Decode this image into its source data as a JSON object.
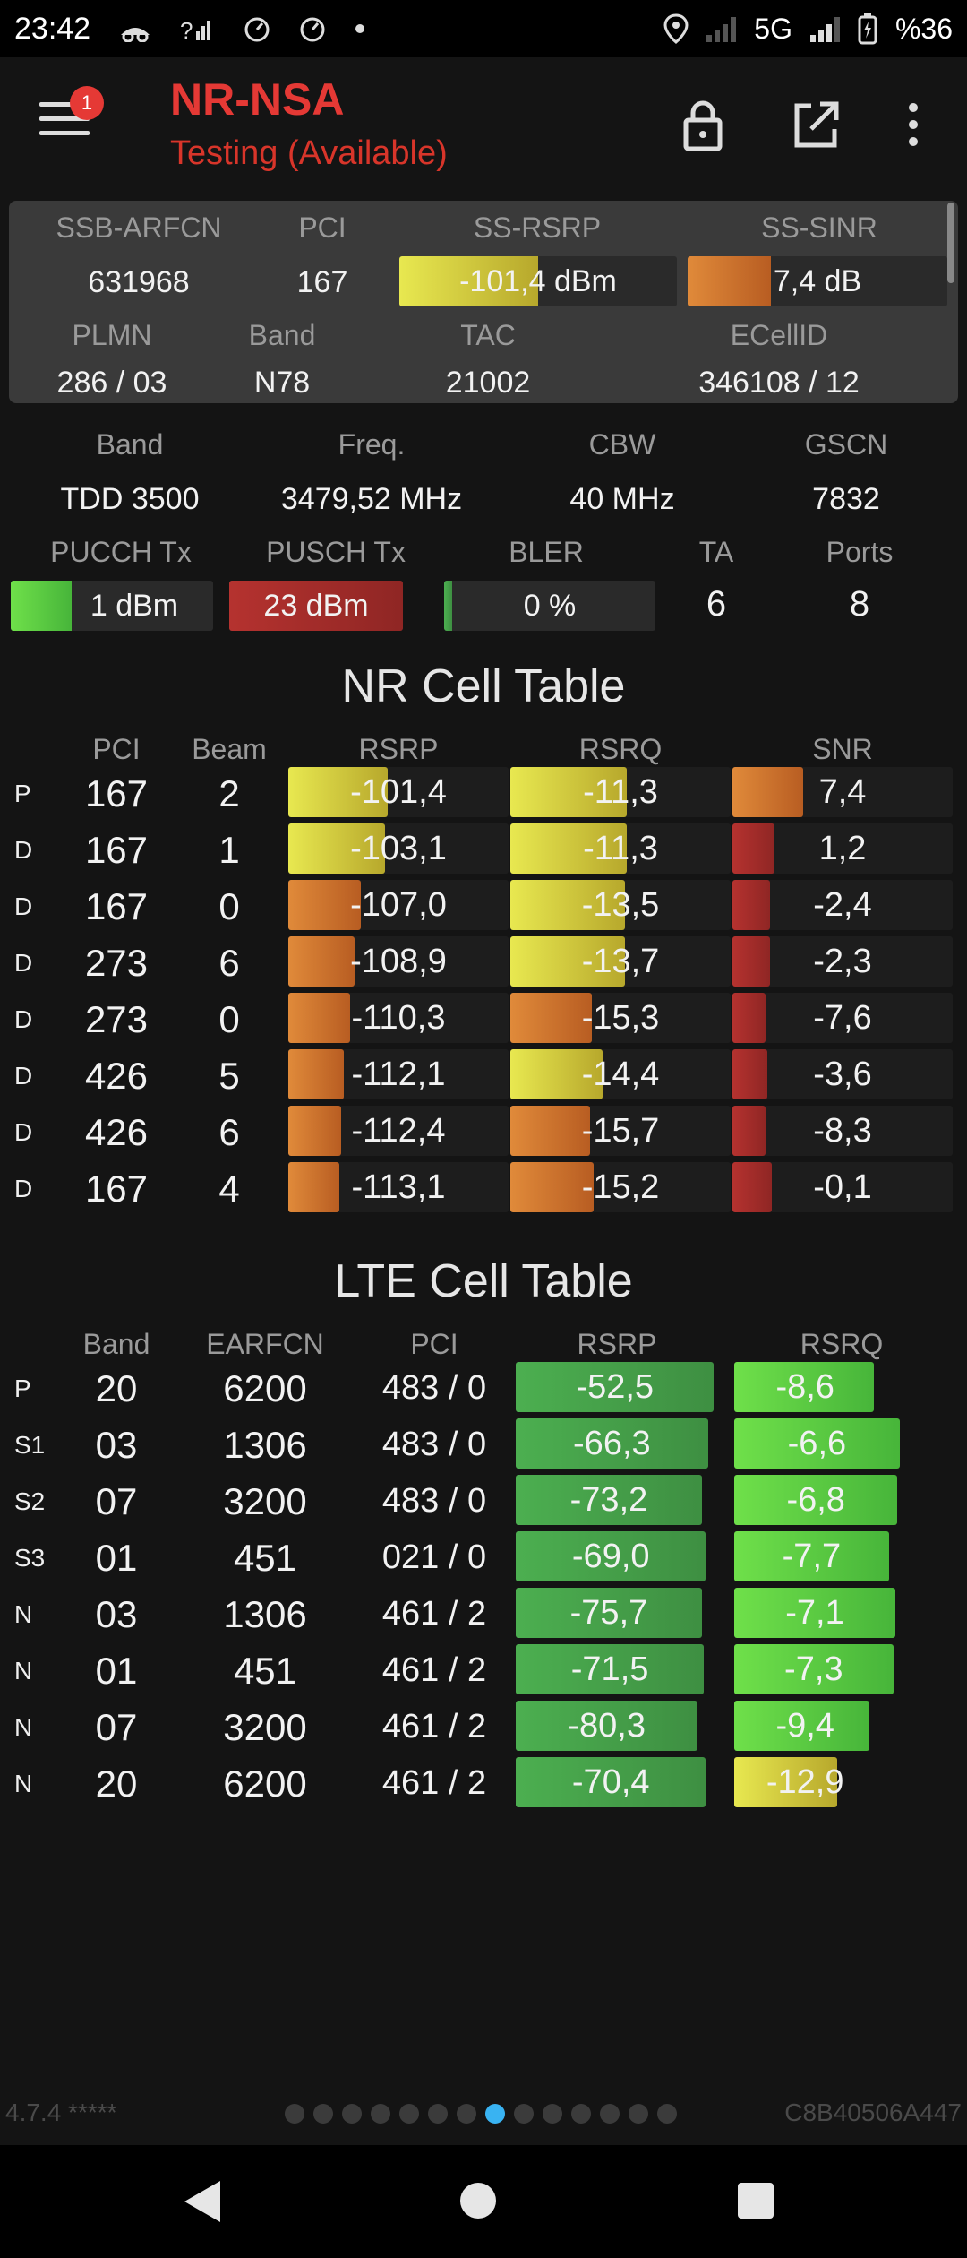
{
  "status_bar": {
    "time": "23:42",
    "network": "5G",
    "battery": "%36"
  },
  "app_bar": {
    "menu_badge": "1",
    "title": "NR-NSA",
    "subtitle": "Testing (Available)",
    "icons": [
      "menu-icon",
      "lock-icon",
      "open-in-new-icon",
      "more-vert-icon"
    ]
  },
  "serving": {
    "labels": {
      "arfcn": "SSB-ARFCN",
      "pci": "PCI",
      "rsrp": "SS-RSRP",
      "sinr": "SS-SINR",
      "plmn": "PLMN",
      "band": "Band",
      "tac": "TAC",
      "ecellid": "ECellID"
    },
    "arfcn": "631968",
    "pci": "167",
    "rsrp": "-101,4 dBm",
    "rsrp_level": 0.5,
    "sinr": "7,4 dB",
    "sinr_level": 0.32,
    "plmn": "286 / 03",
    "band": "N78",
    "tac": "21002",
    "ecellid": "346108 / 12"
  },
  "info": {
    "labels": {
      "band": "Band",
      "freq": "Freq.",
      "cbw": "CBW",
      "gscn": "GSCN",
      "pucch": "PUCCH Tx",
      "pusch": "PUSCH Tx",
      "bler": "BLER",
      "ta": "TA",
      "ports": "Ports"
    },
    "band": "TDD 3500",
    "freq": "3479,52 MHz",
    "cbw": "40 MHz",
    "gscn": "7832",
    "pucch": "1 dBm",
    "pucch_level": 0.3,
    "pusch": "23 dBm",
    "pusch_level": 1.0,
    "bler": "0 %",
    "bler_level": 0.04,
    "ta": "6",
    "ports": "8"
  },
  "nr_table": {
    "title": "NR Cell Table",
    "headers": [
      "PCI",
      "Beam",
      "RSRP",
      "RSRQ",
      "SNR"
    ],
    "rows": [
      {
        "tag": "P",
        "pci": "167",
        "beam": "2",
        "rsrp": "-101,4",
        "rsrp_level": 0.45,
        "rsrp_color": "yellow",
        "rsrq": "-11,3",
        "rsrq_level": 0.53,
        "rsrq_color": "yellow",
        "snr": "7,4",
        "snr_level": 0.32,
        "snr_color": "orange"
      },
      {
        "tag": "D",
        "pci": "167",
        "beam": "1",
        "rsrp": "-103,1",
        "rsrp_level": 0.44,
        "rsrp_color": "yellow",
        "rsrq": "-11,3",
        "rsrq_level": 0.53,
        "rsrq_color": "yellow",
        "snr": "1,2",
        "snr_level": 0.19,
        "snr_color": "red"
      },
      {
        "tag": "D",
        "pci": "167",
        "beam": "0",
        "rsrp": "-107,0",
        "rsrp_level": 0.33,
        "rsrp_color": "orange",
        "rsrq": "-13,5",
        "rsrq_level": 0.52,
        "rsrq_color": "yellow",
        "snr": "-2,4",
        "snr_level": 0.17,
        "snr_color": "red"
      },
      {
        "tag": "D",
        "pci": "273",
        "beam": "6",
        "rsrp": "-108,9",
        "rsrp_level": 0.3,
        "rsrp_color": "orange",
        "rsrq": "-13,7",
        "rsrq_level": 0.52,
        "rsrq_color": "yellow",
        "snr": "-2,3",
        "snr_level": 0.17,
        "snr_color": "red"
      },
      {
        "tag": "D",
        "pci": "273",
        "beam": "0",
        "rsrp": "-110,3",
        "rsrp_level": 0.28,
        "rsrp_color": "orange",
        "rsrq": "-15,3",
        "rsrq_level": 0.37,
        "rsrq_color": "orange",
        "snr": "-7,6",
        "snr_level": 0.15,
        "snr_color": "red"
      },
      {
        "tag": "D",
        "pci": "426",
        "beam": "5",
        "rsrp": "-112,1",
        "rsrp_level": 0.25,
        "rsrp_color": "orange",
        "rsrq": "-14,4",
        "rsrq_level": 0.42,
        "rsrq_color": "yellow",
        "snr": "-3,6",
        "snr_level": 0.16,
        "snr_color": "red"
      },
      {
        "tag": "D",
        "pci": "426",
        "beam": "6",
        "rsrp": "-112,4",
        "rsrp_level": 0.24,
        "rsrp_color": "orange",
        "rsrq": "-15,7",
        "rsrq_level": 0.36,
        "rsrq_color": "orange",
        "snr": "-8,3",
        "snr_level": 0.15,
        "snr_color": "red"
      },
      {
        "tag": "D",
        "pci": "167",
        "beam": "4",
        "rsrp": "-113,1",
        "rsrp_level": 0.23,
        "rsrp_color": "orange",
        "rsrq": "-15,2",
        "rsrq_level": 0.38,
        "rsrq_color": "orange",
        "snr": "-0,1",
        "snr_level": 0.18,
        "snr_color": "red"
      }
    ]
  },
  "lte_table": {
    "title": "LTE Cell Table",
    "headers": [
      "Band",
      "EARFCN",
      "PCI",
      "RSRP",
      "RSRQ"
    ],
    "rows": [
      {
        "tag": "P",
        "band": "20",
        "earfcn": "6200",
        "pci": "483 / 0",
        "rsrp": "-52,5",
        "rsrp_level": 0.98,
        "rsrq": "-8,6",
        "rsrq_level": 0.65,
        "rsrq_color": "green"
      },
      {
        "tag": "S1",
        "band": "03",
        "earfcn": "1306",
        "pci": "483 / 0",
        "rsrp": "-66,3",
        "rsrp_level": 0.95,
        "rsrq": "-6,6",
        "rsrq_level": 0.77,
        "rsrq_color": "green"
      },
      {
        "tag": "S2",
        "band": "07",
        "earfcn": "3200",
        "pci": "483 / 0",
        "rsrp": "-73,2",
        "rsrp_level": 0.92,
        "rsrq": "-6,8",
        "rsrq_level": 0.76,
        "rsrq_color": "green"
      },
      {
        "tag": "S3",
        "band": "01",
        "earfcn": "451",
        "pci": "021 / 0",
        "rsrp": "-69,0",
        "rsrp_level": 0.94,
        "rsrq": "-7,7",
        "rsrq_level": 0.72,
        "rsrq_color": "green"
      },
      {
        "tag": "N",
        "band": "03",
        "earfcn": "1306",
        "pci": "461 / 2",
        "rsrp": "-75,7",
        "rsrp_level": 0.92,
        "rsrq": "-7,1",
        "rsrq_level": 0.75,
        "rsrq_color": "green"
      },
      {
        "tag": "N",
        "band": "01",
        "earfcn": "451",
        "pci": "461 / 2",
        "rsrp": "-71,5",
        "rsrp_level": 0.93,
        "rsrq": "-7,3",
        "rsrq_level": 0.74,
        "rsrq_color": "green"
      },
      {
        "tag": "N",
        "band": "07",
        "earfcn": "3200",
        "pci": "461 / 2",
        "rsrp": "-80,3",
        "rsrp_level": 0.9,
        "rsrq": "-9,4",
        "rsrq_level": 0.63,
        "rsrq_color": "green"
      },
      {
        "tag": "N",
        "band": "20",
        "earfcn": "6200",
        "pci": "461 / 2",
        "rsrp": "-70,4",
        "rsrp_level": 0.94,
        "rsrq": "-12,9",
        "rsrq_level": 0.48,
        "rsrq_color": "yellow"
      }
    ]
  },
  "footer": {
    "version": "4.7.4 *****",
    "device_id": "C8B40506A447",
    "page_count": 14,
    "active_page": 7
  },
  "colors": {
    "yellow": "#d4d43a",
    "orange": "#d6782c",
    "red": "#a8302e",
    "green": "#4caf50",
    "lime": "#5fcf45",
    "title_red": "#e53935"
  }
}
